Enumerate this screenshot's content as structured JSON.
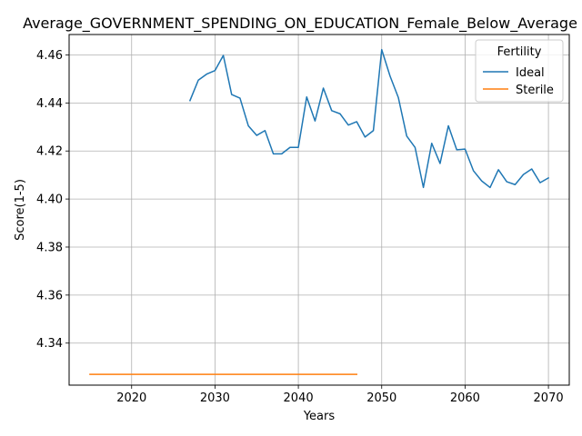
{
  "chart_data": {
    "type": "line",
    "title": "Average_GOVERNMENT_SPENDING_ON_EDUCATION_Female_Below_Average",
    "xlabel": "Years",
    "ylabel": "Score(1-5)",
    "xlim": [
      2012.5,
      2072.5
    ],
    "ylim": [
      4.3225,
      4.4685
    ],
    "xticks": [
      2020,
      2030,
      2040,
      2050,
      2060,
      2070
    ],
    "xtick_labels": [
      "2020",
      "2030",
      "2040",
      "2050",
      "2060",
      "2070"
    ],
    "yticks": [
      4.34,
      4.36,
      4.38,
      4.4,
      4.42,
      4.44,
      4.46
    ],
    "ytick_labels": [
      "4.34",
      "4.36",
      "4.38",
      "4.40",
      "4.42",
      "4.44",
      "4.46"
    ],
    "grid": true,
    "legend": {
      "title": "Fertility",
      "position": "top-right"
    },
    "series": [
      {
        "name": "Ideal",
        "color": "#1f77b4",
        "x": [
          2027,
          2028,
          2029,
          2030,
          2031,
          2032,
          2033,
          2034,
          2035,
          2036,
          2037,
          2038,
          2039,
          2040,
          2041,
          2042,
          2043,
          2044,
          2045,
          2046,
          2047,
          2048,
          2049,
          2050,
          2051,
          2052,
          2053,
          2054,
          2055,
          2056,
          2057,
          2058,
          2059,
          2060,
          2061,
          2062,
          2063,
          2064,
          2065,
          2066,
          2067,
          2068,
          2069,
          2070
        ],
        "y": [
          4.441,
          4.4495,
          4.452,
          4.4535,
          4.4598,
          4.4435,
          4.442,
          4.4305,
          4.4265,
          4.4285,
          4.4188,
          4.4188,
          4.4215,
          4.4215,
          4.4425,
          4.4325,
          4.4462,
          4.4368,
          4.4355,
          4.4308,
          4.4322,
          4.4258,
          4.4285,
          4.4622,
          4.4512,
          4.4422,
          4.4262,
          4.4215,
          4.4048,
          4.4232,
          4.4148,
          4.4305,
          4.4205,
          4.4208,
          4.4118,
          4.4075,
          4.4048,
          4.4122,
          4.4072,
          4.406,
          4.4102,
          4.4125,
          4.4068,
          4.4088
        ]
      },
      {
        "name": "Sterile",
        "color": "#ff7f0e",
        "x": [
          2015,
          2016,
          2017,
          2018,
          2019,
          2020,
          2021,
          2022,
          2023,
          2024,
          2025,
          2026,
          2027,
          2028,
          2029,
          2030,
          2031,
          2032,
          2033,
          2034,
          2035,
          2036,
          2037,
          2038,
          2039,
          2040,
          2041,
          2042,
          2043,
          2044,
          2045,
          2046,
          2047
        ],
        "y": [
          4.327,
          4.327,
          4.327,
          4.327,
          4.327,
          4.327,
          4.327,
          4.327,
          4.327,
          4.327,
          4.327,
          4.327,
          4.327,
          4.327,
          4.327,
          4.327,
          4.327,
          4.327,
          4.327,
          4.327,
          4.327,
          4.327,
          4.327,
          4.327,
          4.327,
          4.327,
          4.327,
          4.327,
          4.327,
          4.327,
          4.327,
          4.327,
          4.327
        ]
      }
    ]
  }
}
